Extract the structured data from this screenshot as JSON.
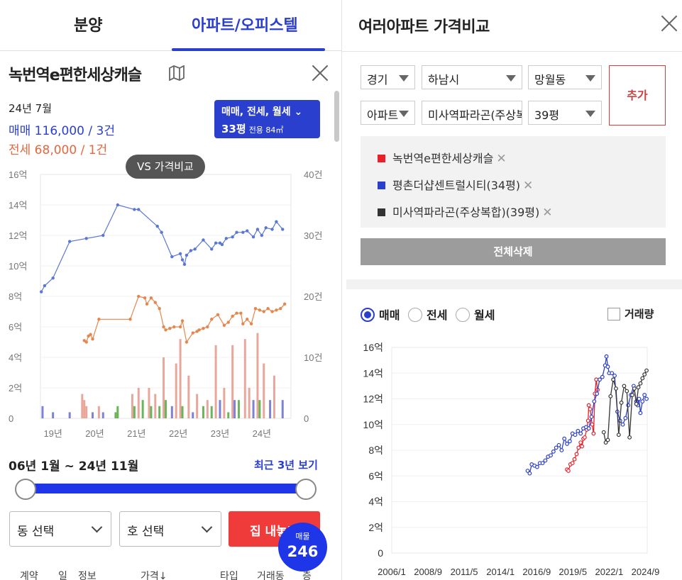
{
  "tabs": [
    {
      "label": "분양",
      "active": false
    },
    {
      "label": "아파트/오피스텔",
      "active": true
    }
  ],
  "detail": {
    "title": "녹번역e편한세상캐슬",
    "summary_date": "24년 7월",
    "buy_line": "매매 116,000 / 3건",
    "rent_line": "전세 68,000 / 1건",
    "type_line1": "매매, 전세, 월세",
    "type_line2": "33평",
    "type_area": "전용 84㎡",
    "vs_label": "VS 가격비교",
    "range_text": "06년 1월 ~ 24년 11월",
    "recent_link": "최근 3년 보기",
    "range_fraction": [
      0,
      1
    ],
    "dong_select": "동 선택",
    "ho_select": "호 선택",
    "house_button": "집 내놓기",
    "listing_label": "매물",
    "listing_count": "246",
    "table_headers": [
      "계약",
      "일",
      "정보",
      "가격↓",
      "타입",
      "거래동",
      "층"
    ]
  },
  "compare": {
    "title": "여러아파트 가격비교",
    "province": "경기",
    "city": "하남시",
    "dong": "망월동",
    "kind": "아파트",
    "complex": "미사역파라곤(주상복합)",
    "size": "39평",
    "add_label": "추가",
    "items": [
      {
        "name": "녹번역e편한세상캐슬",
        "color": "#e8202a"
      },
      {
        "name": "평촌더샵센트럴시티(34평)",
        "color": "#2b3fcf"
      },
      {
        "name": "미사역파라곤(주상복합)(39평)",
        "color": "#333333"
      }
    ],
    "clear_label": "전체삭제",
    "radios": [
      {
        "label": "매매",
        "checked": true
      },
      {
        "label": "전세",
        "checked": false
      },
      {
        "label": "월세",
        "checked": false
      }
    ],
    "volume_label": "거래량"
  },
  "colors": {
    "accent": "#2b3fcf",
    "rent": "#e5673d",
    "red": "#f03b3b"
  },
  "chart_data": [
    {
      "type": "line",
      "x_ticks": [
        "19년",
        "20년",
        "21년",
        "22년",
        "23년",
        "24년"
      ],
      "y_ticks_left": [
        "16억",
        "14억",
        "12억",
        "10억",
        "8억",
        "6억",
        "4억",
        "2억",
        "0"
      ],
      "y_ticks_right": [
        "40건",
        "30건",
        "20건",
        "10건",
        "0"
      ],
      "ylim": [
        0,
        16
      ],
      "ylim_right": [
        0,
        40
      ],
      "xlim": [
        2018.7,
        2024.7
      ],
      "series": [
        {
          "name": "매매",
          "color": "#5b77d6",
          "points": [
            [
              2018.72,
              8.3
            ],
            [
              2018.8,
              8.7
            ],
            [
              2019.0,
              9.2
            ],
            [
              2019.4,
              11.6
            ],
            [
              2019.8,
              11.8
            ],
            [
              2020.2,
              12.0
            ],
            [
              2020.55,
              14.0
            ],
            [
              2020.95,
              13.7
            ],
            [
              2021.05,
              13.7
            ],
            [
              2021.5,
              12.6
            ],
            [
              2021.6,
              12.2
            ],
            [
              2021.85,
              10.6
            ],
            [
              2022.05,
              10.8
            ],
            [
              2022.1,
              10.4
            ],
            [
              2022.15,
              10.1
            ],
            [
              2022.2,
              10.7
            ],
            [
              2022.3,
              11.0
            ],
            [
              2022.4,
              11.1
            ],
            [
              2022.6,
              11.7
            ],
            [
              2022.8,
              11.1
            ],
            [
              2022.9,
              11.5
            ],
            [
              2023.0,
              11.5
            ],
            [
              2023.05,
              11.4
            ],
            [
              2023.15,
              11.8
            ],
            [
              2023.3,
              11.9
            ],
            [
              2023.4,
              12.2
            ],
            [
              2023.55,
              12.2
            ],
            [
              2023.65,
              12.3
            ],
            [
              2023.8,
              11.9
            ],
            [
              2023.9,
              12.4
            ],
            [
              2024.0,
              12.0
            ],
            [
              2024.1,
              12.5
            ],
            [
              2024.25,
              12.4
            ],
            [
              2024.35,
              12.9
            ],
            [
              2024.5,
              12.4
            ]
          ]
        },
        {
          "name": "전세",
          "color": "#e5864d",
          "points": [
            [
              2019.75,
              5.1
            ],
            [
              2019.8,
              5.0
            ],
            [
              2019.85,
              5.4
            ],
            [
              2019.9,
              5.5
            ],
            [
              2019.95,
              5.2
            ],
            [
              2020.1,
              6.5
            ],
            [
              2020.85,
              6.5
            ],
            [
              2021.05,
              8.0
            ],
            [
              2021.2,
              7.9
            ],
            [
              2021.25,
              7.5
            ],
            [
              2021.35,
              7.9
            ],
            [
              2021.45,
              7.6
            ],
            [
              2021.55,
              7.2
            ],
            [
              2021.65,
              6.0
            ],
            [
              2021.7,
              5.8
            ],
            [
              2021.8,
              5.9
            ],
            [
              2021.9,
              6.0
            ],
            [
              2022.05,
              6.0
            ],
            [
              2022.1,
              6.4
            ],
            [
              2022.2,
              5.0
            ],
            [
              2022.35,
              5.6
            ],
            [
              2022.45,
              5.7
            ],
            [
              2022.5,
              5.8
            ],
            [
              2022.6,
              5.9
            ],
            [
              2022.7,
              6.0
            ],
            [
              2022.8,
              6.5
            ],
            [
              2022.95,
              6.8
            ],
            [
              2023.1,
              6.1
            ],
            [
              2023.2,
              6.3
            ],
            [
              2023.3,
              6.7
            ],
            [
              2023.4,
              6.9
            ],
            [
              2023.5,
              6.9
            ],
            [
              2023.55,
              6.2
            ],
            [
              2023.65,
              6.5
            ],
            [
              2023.75,
              6.2
            ],
            [
              2023.85,
              7.2
            ],
            [
              2023.95,
              7.1
            ],
            [
              2024.05,
              7.0
            ],
            [
              2024.15,
              7.2
            ],
            [
              2024.25,
              7.0
            ],
            [
              2024.35,
              7.1
            ],
            [
              2024.45,
              7.2
            ],
            [
              2024.55,
              7.5
            ]
          ]
        }
      ],
      "volume_bars": [
        [
          2018.75,
          2,
          "#7c82d8"
        ],
        [
          2019.0,
          1,
          "#7c82d8"
        ],
        [
          2019.4,
          1,
          "#7c82d8"
        ],
        [
          2019.7,
          4,
          "#e9a79c"
        ],
        [
          2019.75,
          3,
          "#e9a79c"
        ],
        [
          2019.8,
          2,
          "#e9a79c"
        ],
        [
          2019.95,
          1,
          "#7c82d8"
        ],
        [
          2020.1,
          2,
          "#e9a79c"
        ],
        [
          2020.2,
          1,
          "#7c82d8"
        ],
        [
          2020.5,
          1,
          "#6ab55a"
        ],
        [
          2020.55,
          2,
          "#6ab55a"
        ],
        [
          2020.9,
          4,
          "#e9a79c"
        ],
        [
          2020.95,
          2,
          "#6ab55a"
        ],
        [
          2021.05,
          5,
          "#e9a79c"
        ],
        [
          2021.15,
          3,
          "#6ab55a"
        ],
        [
          2021.3,
          5,
          "#e9a79c"
        ],
        [
          2021.35,
          2,
          "#6ab55a"
        ],
        [
          2021.45,
          4,
          "#e9a79c"
        ],
        [
          2021.55,
          2,
          "#6ab55a"
        ],
        [
          2021.65,
          10,
          "#e9a79c"
        ],
        [
          2021.7,
          3,
          "#6ab55a"
        ],
        [
          2021.85,
          2,
          "#7c82d8"
        ],
        [
          2021.95,
          9,
          "#e9a79c"
        ],
        [
          2022.05,
          13,
          "#e9a79c"
        ],
        [
          2022.1,
          2,
          "#6ab55a"
        ],
        [
          2022.25,
          7,
          "#e9a79c"
        ],
        [
          2022.35,
          1,
          "#7c82d8"
        ],
        [
          2022.45,
          4,
          "#e9a79c"
        ],
        [
          2022.6,
          2,
          "#6ab55a"
        ],
        [
          2022.7,
          3,
          "#e9a79c"
        ],
        [
          2022.8,
          2,
          "#6ab55a"
        ],
        [
          2022.9,
          12,
          "#e9a79c"
        ],
        [
          2023.0,
          3,
          "#7c82d8"
        ],
        [
          2023.1,
          5,
          "#e9a79c"
        ],
        [
          2023.2,
          1,
          "#6ab55a"
        ],
        [
          2023.3,
          12,
          "#e9a79c"
        ],
        [
          2023.35,
          3,
          "#7c82d8"
        ],
        [
          2023.45,
          3,
          "#6ab55a"
        ],
        [
          2023.6,
          13,
          "#e9a79c"
        ],
        [
          2023.7,
          5,
          "#e9a79c"
        ],
        [
          2023.8,
          3,
          "#7c82d8"
        ],
        [
          2023.9,
          14,
          "#e9a79c"
        ],
        [
          2023.95,
          3,
          "#6ab55a"
        ],
        [
          2024.05,
          9,
          "#e9a79c"
        ],
        [
          2024.2,
          3,
          "#7c82d8"
        ],
        [
          2024.3,
          7,
          "#e9a79c"
        ],
        [
          2024.5,
          3,
          "#7c82d8"
        ]
      ]
    },
    {
      "type": "line",
      "x_ticks": [
        "2006/1",
        "2008/9",
        "2011/5",
        "2014/1",
        "2016/9",
        "2019/5",
        "2022/1",
        "2024/9"
      ],
      "y_ticks": [
        "16억",
        "14억",
        "12억",
        "10억",
        "8억",
        "6억",
        "4억",
        "2억",
        "0"
      ],
      "ylim": [
        0,
        16
      ],
      "xlim": [
        2006.0,
        2024.8
      ],
      "series": [
        {
          "name": "녹번역e편한세상캐슬",
          "color": "#e8202a",
          "points": [
            [
              2018.9,
              6.5
            ],
            [
              2019.0,
              6.4
            ],
            [
              2019.15,
              6.9
            ],
            [
              2019.3,
              7.0
            ],
            [
              2019.45,
              7.3
            ],
            [
              2019.6,
              7.7
            ],
            [
              2019.75,
              8.2
            ],
            [
              2019.9,
              8.6
            ],
            [
              2020.0,
              8.3
            ],
            [
              2020.1,
              8.9
            ],
            [
              2020.2,
              9.0
            ],
            [
              2020.35,
              9.6
            ],
            [
              2020.45,
              10.3
            ],
            [
              2020.5,
              11.5
            ],
            [
              2020.6,
              11.2
            ],
            [
              2020.75,
              10.0
            ],
            [
              2020.85,
              9.3
            ],
            [
              2020.95,
              12.4
            ],
            [
              2021.05,
              13.5
            ],
            [
              2021.15,
              12.7
            ]
          ]
        },
        {
          "name": "평촌더샵센트럴시티(34평)",
          "color": "#2b3fcf",
          "points": [
            [
              2016.0,
              6.4
            ],
            [
              2016.15,
              6.2
            ],
            [
              2016.3,
              6.9
            ],
            [
              2016.5,
              6.8
            ],
            [
              2016.7,
              6.7
            ],
            [
              2016.9,
              7.0
            ],
            [
              2017.1,
              7.0
            ],
            [
              2017.3,
              7.2
            ],
            [
              2017.5,
              7.5
            ],
            [
              2017.7,
              7.6
            ],
            [
              2017.9,
              7.9
            ],
            [
              2018.1,
              8.2
            ],
            [
              2018.3,
              8.4
            ],
            [
              2018.5,
              8.0
            ],
            [
              2018.7,
              8.9
            ],
            [
              2018.9,
              8.5
            ],
            [
              2019.1,
              8.7
            ],
            [
              2019.3,
              9.3
            ],
            [
              2019.5,
              9.2
            ],
            [
              2019.7,
              9.5
            ],
            [
              2019.9,
              9.3
            ],
            [
              2020.1,
              9.7
            ],
            [
              2020.3,
              9.8
            ],
            [
              2020.5,
              9.7
            ],
            [
              2020.7,
              10.6
            ],
            [
              2020.9,
              11.8
            ],
            [
              2021.1,
              12.4
            ],
            [
              2021.3,
              13.5
            ],
            [
              2021.5,
              13.7
            ],
            [
              2021.7,
              14.6
            ],
            [
              2021.8,
              15.3
            ],
            [
              2021.9,
              14.5
            ],
            [
              2022.0,
              14.0
            ],
            [
              2022.2,
              14.0
            ],
            [
              2022.4,
              13.8
            ],
            [
              2022.6,
              11.0
            ],
            [
              2022.8,
              10.3
            ],
            [
              2023.0,
              10.0
            ],
            [
              2023.2,
              10.5
            ],
            [
              2023.4,
              11.5
            ],
            [
              2023.6,
              12.3
            ],
            [
              2023.8,
              13.0
            ],
            [
              2024.0,
              11.8
            ],
            [
              2024.1,
              11.5
            ],
            [
              2024.2,
              12.0
            ],
            [
              2024.3,
              10.9
            ],
            [
              2024.45,
              11.8
            ],
            [
              2024.6,
              12.3
            ],
            [
              2024.75,
              12.0
            ]
          ]
        },
        {
          "name": "미사역파라곤(주상복합)(39평)",
          "color": "#333333",
          "points": [
            [
              2021.6,
              9.4
            ],
            [
              2021.75,
              8.6
            ],
            [
              2021.9,
              8.8
            ],
            [
              2022.1,
              12.2
            ],
            [
              2022.3,
              13.5
            ],
            [
              2022.5,
              12.8
            ],
            [
              2022.7,
              9.2
            ],
            [
              2022.9,
              11.7
            ],
            [
              2023.1,
              13.0
            ],
            [
              2023.3,
              12.6
            ],
            [
              2023.5,
              9.0
            ],
            [
              2023.7,
              12.3
            ],
            [
              2023.85,
              12.8
            ],
            [
              2024.0,
              11.6
            ],
            [
              2024.15,
              12.9
            ],
            [
              2024.3,
              13.2
            ],
            [
              2024.45,
              13.6
            ],
            [
              2024.6,
              13.9
            ],
            [
              2024.75,
              14.2
            ]
          ]
        }
      ]
    }
  ]
}
